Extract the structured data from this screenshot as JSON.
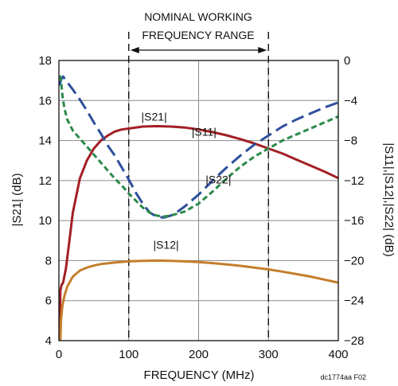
{
  "chart_data": {
    "type": "line",
    "xlabel": "FREQUENCY (MHz)",
    "ylabel_left": "|S21| (dB)",
    "ylabel_right": "|S11|,|S12|,|S22| (dB)",
    "xlim": [
      0,
      400
    ],
    "ylim_left": [
      4,
      18
    ],
    "ylim_right": [
      -28,
      0
    ],
    "x_ticks": [
      "0",
      "100",
      "200",
      "300",
      "400"
    ],
    "y_ticks_left": [
      "4",
      "6",
      "8",
      "10",
      "12",
      "14",
      "16",
      "18"
    ],
    "y_ticks_right": [
      "−28",
      "−24",
      "−20",
      "−16",
      "−12",
      "−8",
      "−4",
      "0"
    ],
    "grid": true,
    "annotation": {
      "line1": "NOMINAL WORKING",
      "line2": "FREQUENCY RANGE",
      "range_start": 100,
      "range_end": 300
    },
    "figure_id": "dc1774aa F02",
    "series": [
      {
        "name": "|S21|",
        "axis": "left",
        "color": "#a31f24",
        "dash": "solid",
        "label_at": [
          118,
          15.0
        ],
        "x": [
          1,
          2,
          4,
          6,
          10,
          15,
          20,
          30,
          40,
          50,
          60,
          70,
          80,
          90,
          100,
          120,
          140,
          160,
          180,
          200,
          220,
          240,
          260,
          280,
          300,
          320,
          340,
          360,
          380,
          400
        ],
        "y": [
          4.2,
          6.5,
          6.8,
          6.9,
          7.6,
          9.0,
          10.4,
          12.1,
          13.0,
          13.6,
          14.0,
          14.25,
          14.45,
          14.55,
          14.6,
          14.7,
          14.72,
          14.7,
          14.65,
          14.55,
          14.42,
          14.26,
          14.07,
          13.85,
          13.6,
          13.35,
          13.05,
          12.75,
          12.45,
          12.12
        ]
      },
      {
        "name": "|S11|",
        "axis": "right",
        "color": "#2e4f9c",
        "dash": "long",
        "label_at": [
          190,
          -7.5
        ],
        "x": [
          1,
          3,
          6,
          10,
          20,
          30,
          40,
          50,
          60,
          70,
          80,
          90,
          100,
          110,
          120,
          130,
          140,
          150,
          160,
          170,
          180,
          200,
          220,
          240,
          260,
          280,
          300,
          320,
          340,
          360,
          380,
          400
        ],
        "y": [
          -2.5,
          -1.9,
          -1.6,
          -2.0,
          -2.9,
          -3.9,
          -5.0,
          -6.2,
          -7.3,
          -8.5,
          -9.5,
          -10.7,
          -11.9,
          -13.2,
          -14.3,
          -15.2,
          -15.6,
          -15.7,
          -15.5,
          -15.1,
          -14.6,
          -13.4,
          -12.0,
          -10.7,
          -9.5,
          -8.4,
          -7.5,
          -6.6,
          -5.9,
          -5.3,
          -4.7,
          -4.2
        ]
      },
      {
        "name": "|S22|",
        "axis": "right",
        "color": "#2a8a4a",
        "dash": "short",
        "label_at": [
          210,
          -12.3
        ],
        "x": [
          1,
          3,
          5,
          8,
          12,
          20,
          30,
          40,
          50,
          60,
          70,
          80,
          90,
          100,
          110,
          120,
          130,
          140,
          150,
          160,
          180,
          200,
          220,
          240,
          260,
          280,
          300,
          320,
          340,
          360,
          380,
          400
        ],
        "y": [
          -1.5,
          -1.9,
          -3.5,
          -4.8,
          -5.9,
          -7.0,
          -7.8,
          -8.6,
          -9.4,
          -10.2,
          -11.0,
          -11.8,
          -12.5,
          -13.3,
          -14.0,
          -14.7,
          -15.2,
          -15.5,
          -15.6,
          -15.5,
          -15.1,
          -14.3,
          -13.1,
          -11.8,
          -10.6,
          -9.6,
          -8.8,
          -8.0,
          -7.4,
          -6.8,
          -6.2,
          -5.6
        ]
      },
      {
        "name": "|S12|",
        "axis": "right",
        "color": "#c47e2c",
        "dash": "solid",
        "label_at": [
          135,
          -18.8
        ],
        "x": [
          2,
          3,
          5,
          8,
          12,
          20,
          30,
          40,
          50,
          60,
          80,
          100,
          120,
          140,
          160,
          180,
          200,
          220,
          240,
          260,
          280,
          300,
          320,
          340,
          360,
          380,
          400
        ],
        "y": [
          -28,
          -26.0,
          -24.5,
          -23.5,
          -22.6,
          -21.6,
          -21.0,
          -20.7,
          -20.5,
          -20.35,
          -20.2,
          -20.08,
          -20.02,
          -20.0,
          -20.02,
          -20.08,
          -20.15,
          -20.25,
          -20.38,
          -20.52,
          -20.7,
          -20.88,
          -21.1,
          -21.35,
          -21.6,
          -21.9,
          -22.2
        ]
      }
    ]
  }
}
